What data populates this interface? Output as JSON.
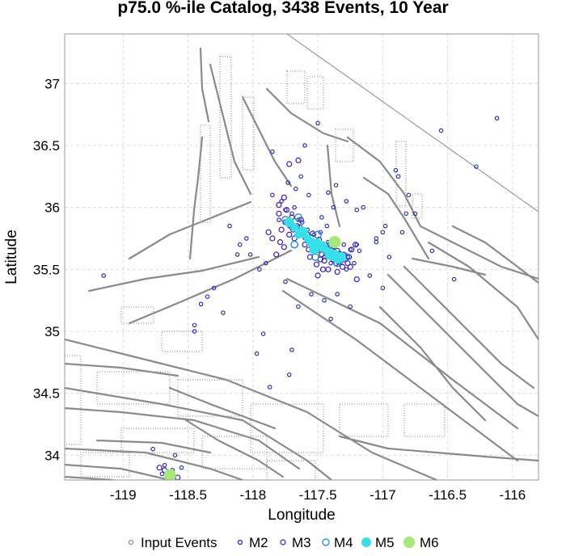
{
  "chart_data": {
    "type": "scatter",
    "title": "p75.0 %-ile Catalog, 3438 Events, 10 Year",
    "xlabel": "Longitude",
    "ylabel": "Latitude",
    "xlim": [
      -119.45,
      -115.8
    ],
    "ylim": [
      33.8,
      37.4
    ],
    "xticks": [
      -119,
      -118.5,
      -118,
      -117.5,
      -117,
      -116.5,
      -116
    ],
    "yticks": [
      34,
      34.5,
      35,
      35.5,
      36,
      36.5,
      37
    ],
    "xtick_labels": [
      "-119",
      "-118.5",
      "-118",
      "-117.5",
      "-117",
      "-116.5",
      "-116"
    ],
    "ytick_labels": [
      "34",
      "34.5",
      "35",
      "35.5",
      "36",
      "36.5",
      "37"
    ],
    "grid": true,
    "legend_placement": "bottom",
    "legend": [
      {
        "label": "Input Events",
        "color": "#8c8c8c",
        "marker": "open-circle-small"
      },
      {
        "label": "M2",
        "color": "#1f1fa8",
        "marker": "open-circle-small"
      },
      {
        "label": "M3",
        "color": "#3a1fb5",
        "marker": "open-circle"
      },
      {
        "label": "M4",
        "color": "#1f7fd6",
        "marker": "open-circle-large"
      },
      {
        "label": "M5",
        "color": "#35e0e8",
        "marker": "filled-circle"
      },
      {
        "label": "M6",
        "color": "#a6e87a",
        "marker": "filled-circle-large"
      }
    ],
    "series": [
      {
        "name": "M2",
        "color": "#1f1fa8",
        "x": [
          -117.72,
          -117.65,
          -117.6,
          -117.55,
          -117.5,
          -117.48,
          -117.45,
          -117.42,
          -117.4,
          -117.38,
          -117.35,
          -117.32,
          -117.3,
          -117.28,
          -117.25,
          -117.7,
          -117.68,
          -117.62,
          -117.58,
          -117.53,
          -117.47,
          -117.43,
          -117.37,
          -117.33,
          -117.27,
          -117.22,
          -117.2,
          -117.18,
          -117.8,
          -117.78,
          -117.75,
          -117.85,
          -117.9,
          -118.05,
          -118.12,
          -118.18,
          -118.3,
          -118.35,
          -118.4,
          -119.15,
          -118.45,
          -117.92,
          -117.97,
          -117.87,
          -117.72,
          -117.7,
          -117.45,
          -117.35,
          -117.25,
          -117.1,
          -117.05,
          -117.0,
          -116.95,
          -116.85,
          -116.82,
          -116.8,
          -116.9,
          -116.88,
          -116.75,
          -116.62,
          -116.55,
          -116.45,
          -116.28,
          -116.12,
          -117.4,
          -117.55,
          -117.65,
          -117.75,
          -117.95,
          -118.02,
          -118.1,
          -118.23,
          -118.45,
          -118.68,
          -118.7,
          -118.62,
          -118.55,
          -118.6,
          -118.77,
          -117.85,
          -117.6,
          -117.5,
          -117.28,
          -117.2,
          -117.15,
          -117.05,
          -117.0,
          -116.98,
          -117.73,
          -117.67,
          -117.63,
          -117.57,
          -117.42,
          -117.38,
          -117.36
        ],
        "y": [
          35.85,
          35.9,
          35.75,
          35.7,
          35.65,
          35.8,
          35.6,
          35.72,
          35.55,
          35.68,
          35.62,
          35.58,
          35.7,
          35.5,
          35.66,
          35.95,
          36.0,
          35.88,
          35.82,
          35.78,
          35.92,
          35.85,
          35.75,
          35.63,
          35.6,
          35.55,
          35.7,
          35.65,
          35.9,
          36.05,
          35.98,
          36.1,
          35.55,
          35.75,
          35.62,
          35.85,
          35.35,
          35.28,
          35.22,
          35.45,
          35.05,
          34.98,
          34.82,
          34.55,
          34.65,
          34.85,
          35.25,
          35.3,
          35.2,
          35.45,
          35.72,
          35.35,
          35.6,
          35.8,
          35.95,
          36.1,
          36.3,
          36.25,
          35.95,
          35.65,
          36.62,
          35.42,
          36.33,
          36.72,
          35.1,
          35.3,
          35.2,
          35.4,
          35.5,
          35.62,
          35.7,
          35.15,
          35.0,
          33.92,
          33.85,
          33.88,
          33.9,
          34.0,
          34.05,
          36.45,
          36.5,
          36.68,
          36.05,
          35.98,
          36.0,
          35.75,
          35.8,
          35.85,
          36.2,
          36.15,
          36.25,
          36.1,
          36.12,
          36.0,
          36.18
        ]
      },
      {
        "name": "M3",
        "color": "#3a1fb5",
        "x": [
          -117.75,
          -117.7,
          -117.66,
          -117.62,
          -117.58,
          -117.55,
          -117.52,
          -117.5,
          -117.47,
          -117.44,
          -117.41,
          -117.38,
          -117.36,
          -117.33,
          -117.3,
          -117.78,
          -117.72,
          -117.68,
          -117.6,
          -117.57,
          -117.53,
          -117.49,
          -117.46,
          -117.43,
          -117.39,
          -117.35,
          -117.31,
          -117.27,
          -117.8,
          -117.74,
          -117.71,
          -117.64,
          -117.59,
          -117.54,
          -117.48,
          -117.45,
          -117.4,
          -117.37,
          -117.34,
          -117.29,
          -117.79,
          -117.76,
          -117.69,
          -117.63,
          -117.56,
          -117.51,
          -117.42,
          -117.26,
          -117.24,
          -117.21,
          -117.82,
          -117.85,
          -117.88,
          -117.8,
          -117.76,
          -117.5,
          -117.46,
          -117.35,
          -117.25,
          -117.2,
          -118.68,
          -118.72,
          -118.65,
          -118.58,
          -117.72,
          -117.65
        ],
        "y": [
          35.88,
          35.92,
          35.85,
          35.8,
          35.78,
          35.72,
          35.7,
          35.68,
          35.62,
          35.65,
          35.6,
          35.58,
          35.55,
          35.6,
          35.62,
          35.82,
          35.78,
          35.75,
          35.7,
          35.66,
          35.64,
          35.74,
          35.7,
          35.68,
          35.66,
          35.65,
          35.52,
          35.55,
          35.95,
          35.98,
          35.86,
          35.84,
          35.76,
          35.79,
          35.58,
          35.57,
          35.63,
          35.7,
          35.56,
          35.58,
          35.72,
          35.68,
          35.82,
          35.9,
          35.6,
          35.54,
          35.5,
          35.6,
          35.66,
          35.7,
          35.62,
          35.75,
          35.8,
          36.02,
          36.08,
          35.45,
          35.5,
          35.48,
          35.52,
          35.42,
          33.88,
          33.9,
          33.85,
          33.82,
          36.35,
          36.38
        ]
      },
      {
        "name": "M4",
        "color": "#1f7fd6",
        "x": [
          -117.7,
          -117.62,
          -117.55,
          -117.48,
          -117.42,
          -117.37,
          -117.33,
          -117.65,
          -117.58,
          -117.45,
          -117.4,
          -117.52,
          -117.35,
          -117.28,
          -117.75,
          -117.68,
          -117.5
        ],
        "y": [
          35.85,
          35.8,
          35.72,
          35.68,
          35.62,
          35.6,
          35.57,
          35.92,
          35.75,
          35.66,
          35.7,
          35.6,
          35.55,
          35.6,
          35.9,
          35.7,
          35.78
        ]
      },
      {
        "name": "M5",
        "color": "#35e0e8",
        "x": [
          -117.72,
          -117.68,
          -117.62,
          -117.58,
          -117.55,
          -117.5,
          -117.46,
          -117.43,
          -117.4,
          -117.37,
          -117.35,
          -117.32,
          -117.65,
          -117.53
        ],
        "y": [
          35.88,
          35.84,
          35.8,
          35.75,
          35.72,
          35.7,
          35.68,
          35.65,
          35.62,
          35.62,
          35.58,
          35.6,
          35.78,
          35.66
        ],
        "sizes": [
          6,
          5,
          7,
          5,
          6,
          7,
          6,
          5,
          7,
          6,
          5,
          6,
          5,
          6
        ]
      },
      {
        "name": "M6",
        "color": "#a6e87a",
        "x": [
          -117.37,
          -118.64
        ],
        "y": [
          35.72,
          33.84
        ]
      }
    ]
  },
  "faults": "gray fault traces"
}
